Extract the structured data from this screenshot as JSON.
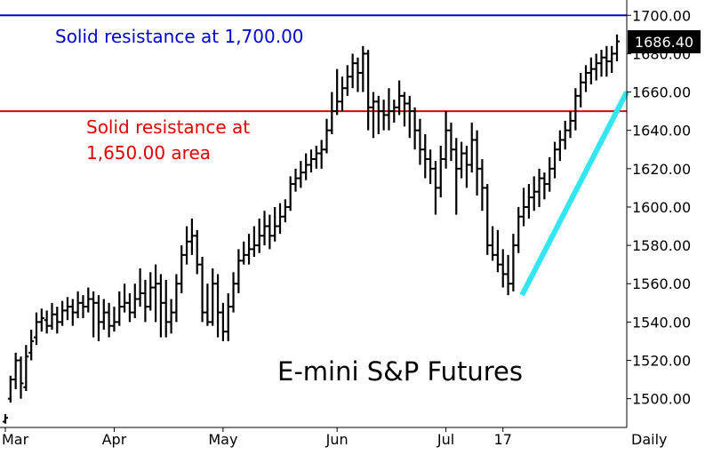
{
  "chart_data": {
    "type": "line",
    "subtype": "ohlc-bar",
    "title": "E-mini S&P Futures",
    "periodicity_label": "Daily",
    "last_price_label": "1686.40",
    "ylim": [
      1485,
      1708
    ],
    "y_ticks": [
      "1500.00",
      "1520.00",
      "1540.00",
      "1560.00",
      "1580.00",
      "1600.00",
      "1620.00",
      "1640.00",
      "1660.00",
      "1680.00",
      "1700.00"
    ],
    "x_ticks": [
      {
        "label": "Mar",
        "bar_index": 0
      },
      {
        "label": "Apr",
        "bar_index": 21
      },
      {
        "label": "May",
        "bar_index": 42
      },
      {
        "label": "Jun",
        "bar_index": 64
      },
      {
        "label": "Jul",
        "bar_index": 85
      },
      {
        "label": "17",
        "bar_index": 96
      }
    ],
    "close_series": [
      1490,
      1510,
      1520,
      1508,
      1522,
      1530,
      1540,
      1542,
      1538,
      1544,
      1540,
      1546,
      1548,
      1545,
      1550,
      1548,
      1552,
      1550,
      1540,
      1545,
      1538,
      1540,
      1548,
      1550,
      1545,
      1552,
      1555,
      1548,
      1558,
      1560,
      1550,
      1540,
      1545,
      1560,
      1575,
      1582,
      1585,
      1570,
      1545,
      1540,
      1560,
      1545,
      1535,
      1548,
      1560,
      1572,
      1575,
      1578,
      1580,
      1585,
      1590,
      1585,
      1590,
      1595,
      1600,
      1612,
      1615,
      1618,
      1622,
      1625,
      1628,
      1630,
      1640,
      1650,
      1655,
      1662,
      1668,
      1675,
      1670,
      1680,
      1652,
      1655,
      1650,
      1648,
      1650,
      1652,
      1658,
      1654,
      1650,
      1640,
      1630,
      1625,
      1620,
      1610,
      1625,
      1640,
      1630,
      1620,
      1628,
      1622,
      1635,
      1620,
      1610,
      1580,
      1575,
      1570,
      1565,
      1560,
      1580,
      1595,
      1600,
      1605,
      1608,
      1615,
      1612,
      1620,
      1630,
      1635,
      1640,
      1645,
      1658,
      1665,
      1670,
      1672,
      1675,
      1678,
      1676,
      1680,
      1686.4
    ],
    "series": [
      {
        "type": "ohlc",
        "values": [
          [
            1488,
            1492,
            1487,
            1490
          ],
          [
            1500,
            1512,
            1498,
            1510
          ],
          [
            1510,
            1524,
            1505,
            1520
          ],
          [
            1520,
            1522,
            1500,
            1508
          ],
          [
            1506,
            1528,
            1504,
            1522
          ],
          [
            1524,
            1536,
            1520,
            1530
          ],
          [
            1532,
            1545,
            1528,
            1540
          ],
          [
            1540,
            1547,
            1535,
            1542
          ],
          [
            1541,
            1546,
            1534,
            1538
          ],
          [
            1538,
            1550,
            1536,
            1544
          ],
          [
            1544,
            1548,
            1534,
            1540
          ],
          [
            1540,
            1551,
            1538,
            1546
          ],
          [
            1546,
            1553,
            1541,
            1548
          ],
          [
            1548,
            1552,
            1538,
            1545
          ],
          [
            1545,
            1556,
            1542,
            1550
          ],
          [
            1550,
            1554,
            1542,
            1548
          ],
          [
            1548,
            1558,
            1545,
            1552
          ],
          [
            1552,
            1556,
            1532,
            1550
          ],
          [
            1550,
            1554,
            1530,
            1540
          ],
          [
            1540,
            1552,
            1536,
            1545
          ],
          [
            1545,
            1550,
            1532,
            1538
          ],
          [
            1538,
            1548,
            1535,
            1540
          ],
          [
            1540,
            1556,
            1538,
            1548
          ],
          [
            1548,
            1560,
            1545,
            1550
          ],
          [
            1550,
            1555,
            1540,
            1545
          ],
          [
            1545,
            1560,
            1542,
            1552
          ],
          [
            1552,
            1568,
            1548,
            1555
          ],
          [
            1555,
            1562,
            1540,
            1548
          ],
          [
            1548,
            1566,
            1546,
            1558
          ],
          [
            1558,
            1570,
            1540,
            1560
          ],
          [
            1560,
            1565,
            1532,
            1550
          ],
          [
            1550,
            1562,
            1532,
            1540
          ],
          [
            1540,
            1552,
            1534,
            1545
          ],
          [
            1545,
            1565,
            1540,
            1560
          ],
          [
            1560,
            1580,
            1555,
            1575
          ],
          [
            1575,
            1590,
            1570,
            1582
          ],
          [
            1582,
            1594,
            1575,
            1585
          ],
          [
            1585,
            1588,
            1565,
            1570
          ],
          [
            1570,
            1574,
            1540,
            1545
          ],
          [
            1545,
            1560,
            1538,
            1540
          ],
          [
            1540,
            1568,
            1538,
            1560
          ],
          [
            1560,
            1565,
            1532,
            1545
          ],
          [
            1545,
            1550,
            1530,
            1535
          ],
          [
            1535,
            1555,
            1530,
            1548
          ],
          [
            1548,
            1566,
            1545,
            1560
          ],
          [
            1560,
            1578,
            1555,
            1572
          ],
          [
            1572,
            1582,
            1570,
            1575
          ],
          [
            1575,
            1586,
            1570,
            1578
          ],
          [
            1578,
            1590,
            1574,
            1580
          ],
          [
            1580,
            1594,
            1576,
            1585
          ],
          [
            1585,
            1598,
            1580,
            1590
          ],
          [
            1590,
            1596,
            1578,
            1585
          ],
          [
            1585,
            1600,
            1582,
            1590
          ],
          [
            1590,
            1602,
            1586,
            1595
          ],
          [
            1595,
            1604,
            1592,
            1600
          ],
          [
            1600,
            1616,
            1598,
            1612
          ],
          [
            1612,
            1620,
            1608,
            1615
          ],
          [
            1615,
            1624,
            1610,
            1618
          ],
          [
            1618,
            1628,
            1614,
            1622
          ],
          [
            1622,
            1630,
            1618,
            1625
          ],
          [
            1625,
            1632,
            1620,
            1628
          ],
          [
            1628,
            1635,
            1620,
            1630
          ],
          [
            1630,
            1646,
            1628,
            1640
          ],
          [
            1640,
            1660,
            1638,
            1650
          ],
          [
            1650,
            1672,
            1648,
            1655
          ],
          [
            1655,
            1668,
            1650,
            1662
          ],
          [
            1662,
            1674,
            1658,
            1668
          ],
          [
            1668,
            1680,
            1662,
            1675
          ],
          [
            1675,
            1678,
            1660,
            1670
          ],
          [
            1670,
            1684,
            1660,
            1680
          ],
          [
            1680,
            1682,
            1640,
            1652
          ],
          [
            1652,
            1660,
            1636,
            1655
          ],
          [
            1655,
            1658,
            1638,
            1650
          ],
          [
            1650,
            1656,
            1640,
            1648
          ],
          [
            1648,
            1662,
            1640,
            1650
          ],
          [
            1650,
            1656,
            1644,
            1652
          ],
          [
            1652,
            1666,
            1648,
            1658
          ],
          [
            1658,
            1660,
            1642,
            1654
          ],
          [
            1654,
            1658,
            1636,
            1650
          ],
          [
            1650,
            1652,
            1630,
            1640
          ],
          [
            1640,
            1646,
            1622,
            1630
          ],
          [
            1630,
            1638,
            1615,
            1625
          ],
          [
            1625,
            1630,
            1612,
            1620
          ],
          [
            1620,
            1624,
            1596,
            1610
          ],
          [
            1610,
            1632,
            1605,
            1625
          ],
          [
            1625,
            1650,
            1620,
            1640
          ],
          [
            1640,
            1644,
            1624,
            1630
          ],
          [
            1630,
            1636,
            1596,
            1620
          ],
          [
            1620,
            1634,
            1615,
            1628
          ],
          [
            1628,
            1632,
            1610,
            1622
          ],
          [
            1622,
            1644,
            1618,
            1635
          ],
          [
            1635,
            1640,
            1606,
            1620
          ],
          [
            1620,
            1625,
            1598,
            1610
          ],
          [
            1610,
            1612,
            1575,
            1580
          ],
          [
            1580,
            1590,
            1572,
            1575
          ],
          [
            1575,
            1588,
            1566,
            1570
          ],
          [
            1570,
            1578,
            1558,
            1565
          ],
          [
            1565,
            1575,
            1554,
            1560
          ],
          [
            1560,
            1586,
            1556,
            1580
          ],
          [
            1580,
            1600,
            1576,
            1595
          ],
          [
            1595,
            1610,
            1590,
            1600
          ],
          [
            1600,
            1612,
            1594,
            1605
          ],
          [
            1605,
            1616,
            1598,
            1608
          ],
          [
            1608,
            1620,
            1600,
            1615
          ],
          [
            1615,
            1618,
            1604,
            1612
          ],
          [
            1612,
            1626,
            1608,
            1620
          ],
          [
            1620,
            1634,
            1615,
            1630
          ],
          [
            1630,
            1640,
            1624,
            1635
          ],
          [
            1635,
            1645,
            1630,
            1640
          ],
          [
            1640,
            1650,
            1636,
            1645
          ],
          [
            1645,
            1662,
            1640,
            1658
          ],
          [
            1658,
            1670,
            1652,
            1665
          ],
          [
            1665,
            1674,
            1660,
            1670
          ],
          [
            1670,
            1678,
            1664,
            1672
          ],
          [
            1672,
            1680,
            1666,
            1675
          ],
          [
            1675,
            1682,
            1668,
            1678
          ],
          [
            1678,
            1684,
            1668,
            1676
          ],
          [
            1676,
            1684,
            1670,
            1680
          ],
          [
            1680,
            1690,
            1676,
            1686.4
          ]
        ]
      }
    ],
    "reference_lines": [
      {
        "value": 1700,
        "color": "#0000cc",
        "label": "Solid resistance at 1,700.00"
      },
      {
        "value": 1650,
        "color": "#e00000",
        "label_lines": [
          "Solid resistance at",
          "1,650.00 area"
        ]
      }
    ],
    "trendline": {
      "color": "#33e6f2",
      "from": {
        "bar_index": 100,
        "value": 1554
      },
      "to": {
        "bar_index": 119,
        "value": 1660
      }
    }
  }
}
